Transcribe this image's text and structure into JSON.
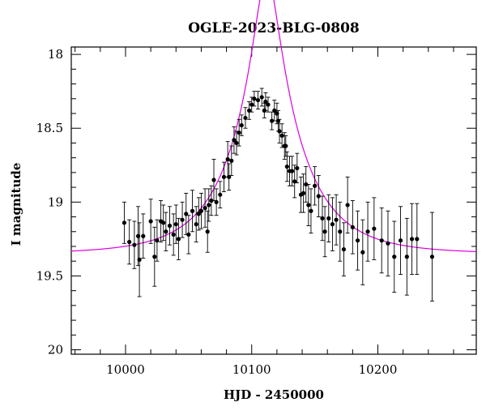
{
  "chart_data": {
    "type": "scatter",
    "title": "OGLE-2023-BLG-0808",
    "xlabel": "HJD - 2450000",
    "ylabel": "I magnitude",
    "xlim": [
      9957,
      10278
    ],
    "ylim": [
      20.03,
      17.95
    ],
    "y_inverted": true,
    "grid": false,
    "x_ticks": [
      10000,
      10100,
      10200
    ],
    "y_ticks": [
      18,
      18.5,
      19,
      19.5,
      20
    ],
    "x_tick_labels": [
      "10000",
      "10100",
      "10200"
    ],
    "y_tick_labels": [
      "18",
      "18.5",
      "19",
      "19.5",
      "20"
    ],
    "colors": {
      "points": "#000000",
      "model": "#dd00dd"
    },
    "model": {
      "t0": 10112,
      "tE": 52,
      "u0": 0.18,
      "base_mag": 19.35
    },
    "series": [
      {
        "kind": "points_with_errorbars",
        "x": [
          9999,
          10003,
          10007,
          10010,
          10011,
          10014,
          10020,
          10023,
          10025,
          10028,
          10030,
          10032,
          10035,
          10038,
          10040,
          10042,
          10045,
          10048,
          10050,
          10053,
          10056,
          10058,
          10060,
          10063,
          10065,
          10066,
          10068,
          10070,
          10072,
          10075,
          10078,
          10081,
          10082,
          10084,
          10086,
          10088,
          10090,
          10092,
          10095,
          10098,
          10100,
          10102,
          10105,
          10108,
          10110,
          10111,
          10113,
          10116,
          10118,
          10120,
          10121,
          10122,
          10124,
          10126,
          10127,
          10128,
          10130,
          10132,
          10134,
          10136,
          10139,
          10141,
          10143,
          10145,
          10147,
          10150,
          10153,
          10156,
          10158,
          10161,
          10164,
          10167,
          10170,
          10173,
          10176,
          10180,
          10184,
          10188,
          10192,
          10197,
          10203,
          10208,
          10213,
          10218,
          10223,
          10227,
          10231,
          10243
        ],
        "y": [
          19.14,
          19.27,
          19.29,
          19.23,
          19.39,
          19.23,
          19.13,
          19.37,
          19.26,
          19.13,
          19.14,
          19.2,
          19.16,
          19.22,
          19.15,
          19.25,
          19.12,
          19.08,
          19.22,
          19.06,
          19.15,
          19.08,
          19.06,
          19.04,
          19.2,
          19.02,
          18.99,
          18.85,
          19.0,
          18.95,
          18.83,
          18.71,
          18.83,
          18.72,
          18.58,
          18.6,
          18.53,
          18.48,
          18.43,
          18.38,
          18.34,
          18.3,
          18.31,
          18.29,
          18.38,
          18.32,
          18.34,
          18.45,
          18.38,
          18.4,
          18.45,
          18.52,
          18.55,
          18.62,
          18.62,
          18.76,
          18.79,
          18.79,
          18.86,
          18.77,
          18.95,
          18.94,
          18.88,
          19.02,
          19.06,
          18.89,
          18.96,
          19.11,
          19.2,
          19.11,
          19.15,
          19.12,
          19.2,
          19.32,
          19.02,
          19.17,
          19.26,
          19.34,
          19.2,
          19.18,
          19.26,
          19.28,
          19.37,
          19.26,
          19.37,
          19.25,
          19.25,
          19.37
        ],
        "err": [
          0.14,
          0.15,
          0.16,
          0.2,
          0.25,
          0.15,
          0.15,
          0.2,
          0.14,
          0.14,
          0.12,
          0.13,
          0.13,
          0.14,
          0.13,
          0.14,
          0.12,
          0.14,
          0.13,
          0.14,
          0.12,
          0.11,
          0.12,
          0.13,
          0.14,
          0.11,
          0.1,
          0.14,
          0.09,
          0.09,
          0.1,
          0.12,
          0.09,
          0.1,
          0.09,
          0.08,
          0.09,
          0.07,
          0.07,
          0.06,
          0.05,
          0.05,
          0.06,
          0.06,
          0.05,
          0.06,
          0.05,
          0.06,
          0.07,
          0.07,
          0.07,
          0.08,
          0.08,
          0.09,
          0.07,
          0.1,
          0.1,
          0.1,
          0.11,
          0.1,
          0.12,
          0.13,
          0.12,
          0.14,
          0.15,
          0.13,
          0.14,
          0.15,
          0.17,
          0.16,
          0.18,
          0.17,
          0.2,
          0.18,
          0.19,
          0.18,
          0.2,
          0.22,
          0.2,
          0.21,
          0.22,
          0.22,
          0.24,
          0.23,
          0.26,
          0.24,
          0.24,
          0.3
        ]
      }
    ]
  }
}
